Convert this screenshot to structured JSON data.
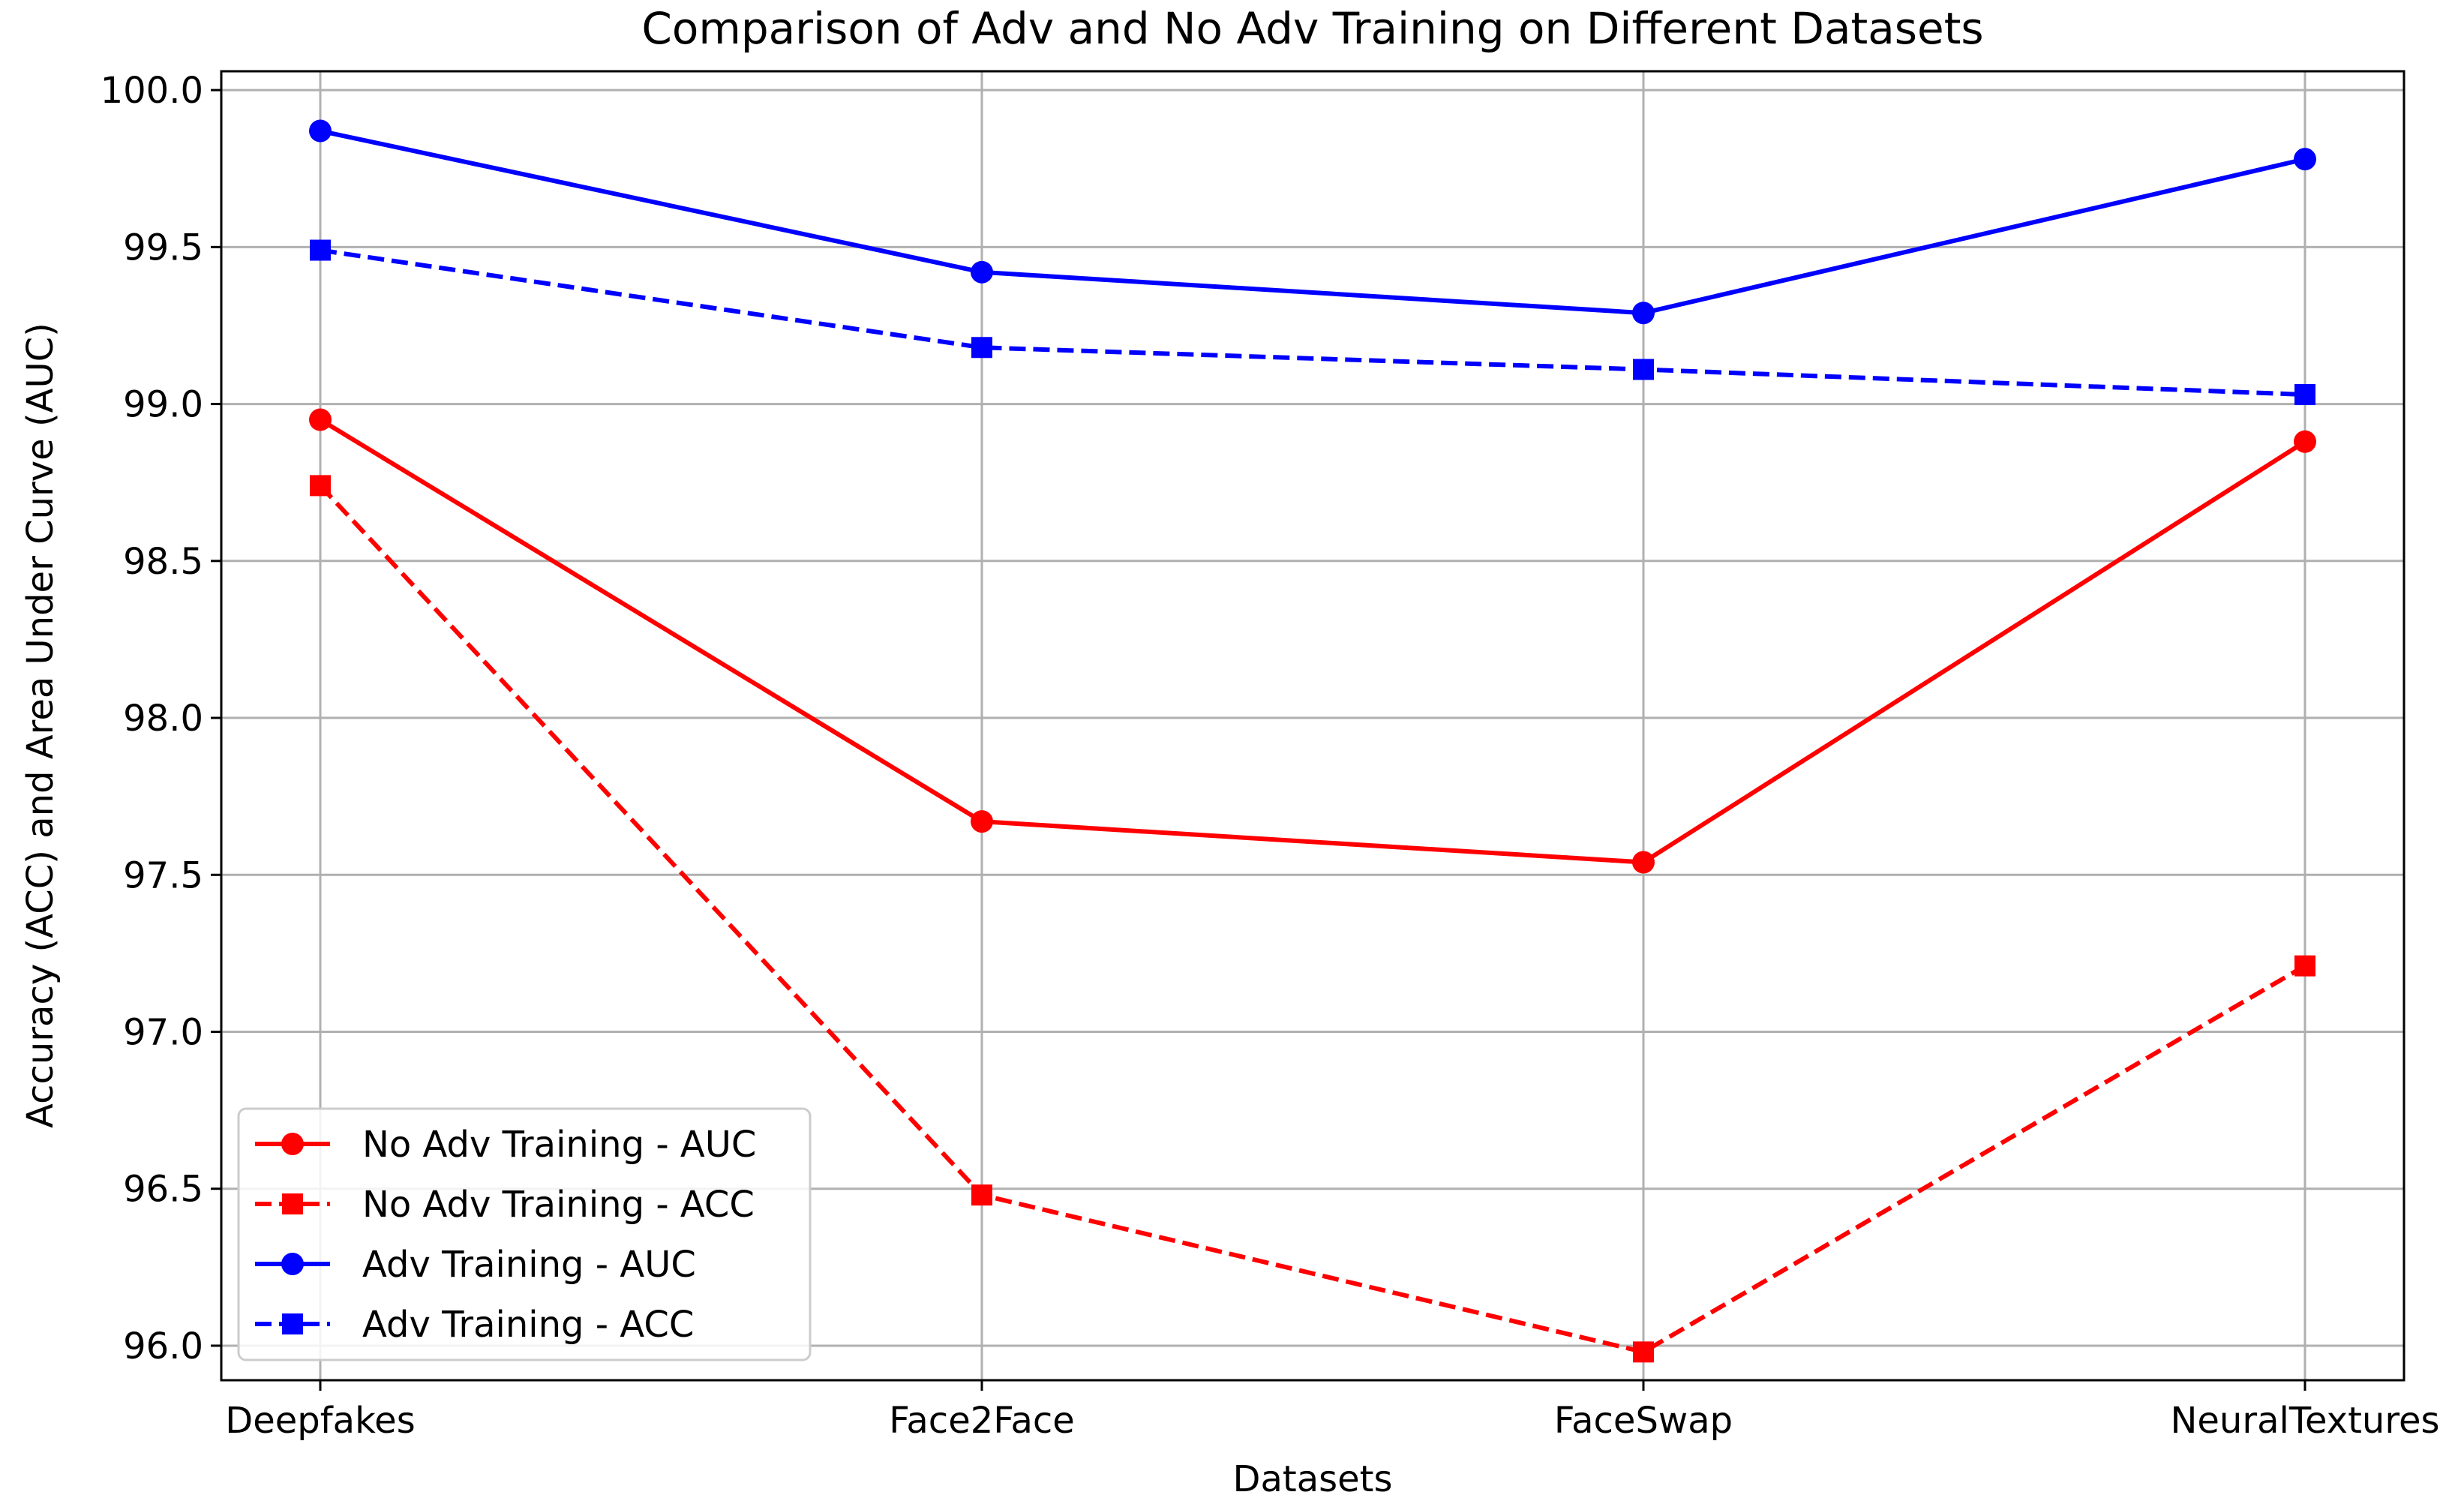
{
  "chart_data": {
    "type": "line",
    "title": "Comparison of Adv and No Adv Training on Different Datasets",
    "xlabel": "Datasets",
    "ylabel": "Accuracy (ACC) and Area Under Curve (AUC)",
    "categories": [
      "Deepfakes",
      "Face2Face",
      "FaceSwap",
      "NeuralTextures"
    ],
    "ylim": [
      95.89,
      100.06
    ],
    "yticks": [
      96.0,
      96.5,
      97.0,
      97.5,
      98.0,
      98.5,
      99.0,
      99.5,
      100.0
    ],
    "ytick_labels": [
      "96.0",
      "96.5",
      "97.0",
      "97.5",
      "98.0",
      "98.5",
      "99.0",
      "99.5",
      "100.0"
    ],
    "grid": true,
    "legend_position": "lower-left",
    "series": [
      {
        "name": "No Adv Training - AUC",
        "values": [
          98.95,
          97.67,
          97.54,
          98.88
        ],
        "color": "#ff0000",
        "linestyle": "solid",
        "marker": "circle"
      },
      {
        "name": "No Adv Training - ACC",
        "values": [
          98.74,
          96.48,
          95.98,
          97.21
        ],
        "color": "#ff0000",
        "linestyle": "dashed",
        "marker": "square"
      },
      {
        "name": "Adv Training - AUC",
        "values": [
          99.87,
          99.42,
          99.29,
          99.78
        ],
        "color": "#0000ff",
        "linestyle": "solid",
        "marker": "circle"
      },
      {
        "name": "Adv Training - ACC",
        "values": [
          99.49,
          99.18,
          99.11,
          99.03
        ],
        "color": "#0000ff",
        "linestyle": "dashed",
        "marker": "square"
      }
    ]
  }
}
